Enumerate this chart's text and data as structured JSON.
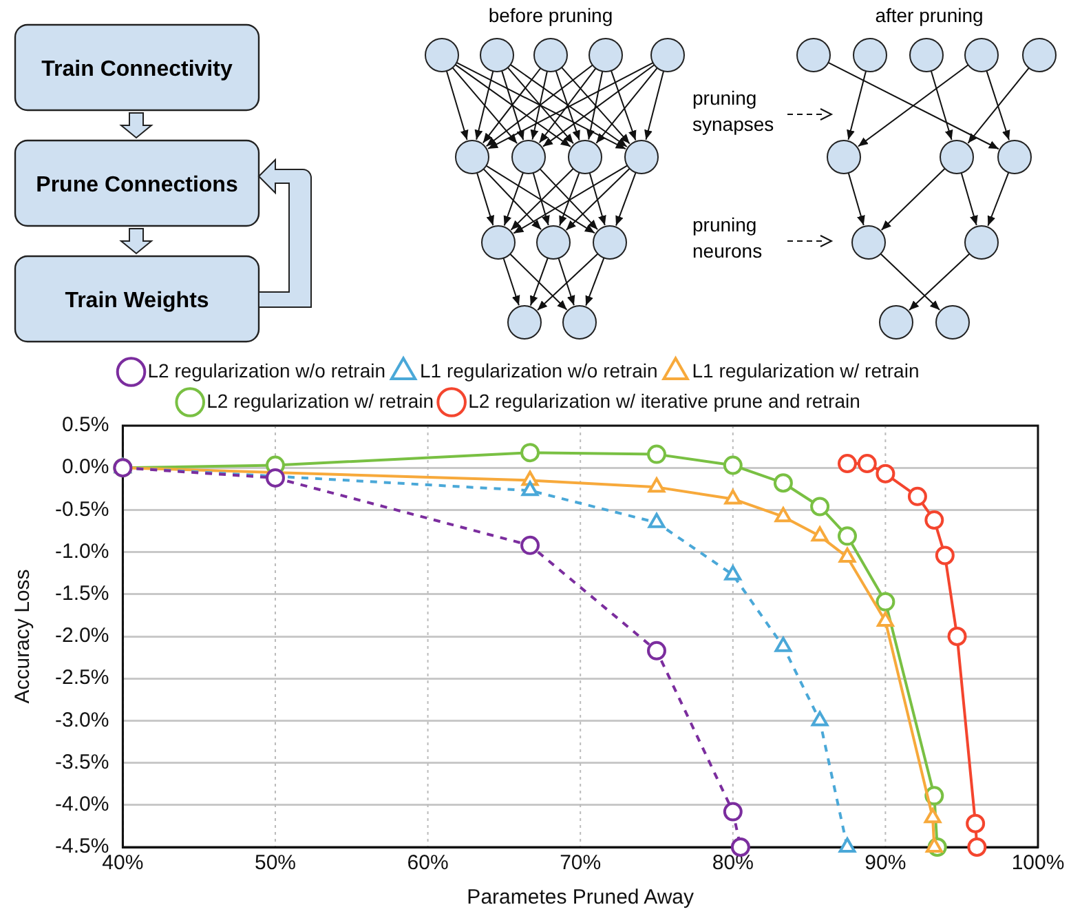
{
  "chart_data": {
    "type": "line",
    "xlabel": "Parametes Pruned Away",
    "ylabel": "Accuracy Loss",
    "annotations": [
      "Train Connectivity",
      "Prune Connections",
      "Train Weights",
      "before pruning",
      "after pruning",
      "pruning synapses",
      "pruning neurons"
    ],
    "xlim": [
      40,
      100
    ],
    "xticks": [
      {
        "value": 40,
        "label": "40%"
      },
      {
        "value": 50,
        "label": "50%"
      },
      {
        "value": 60,
        "label": "60%"
      },
      {
        "value": 70,
        "label": "70%"
      },
      {
        "value": 80,
        "label": "80%"
      },
      {
        "value": 90,
        "label": "90%"
      },
      {
        "value": 100,
        "label": "100%"
      }
    ],
    "ylim": [
      -4.5,
      0.5
    ],
    "yticks": [
      {
        "value": 0.5,
        "label": "0.5%"
      },
      {
        "value": 0,
        "label": "0.0%"
      },
      {
        "value": -0.5,
        "label": "-0.5%"
      },
      {
        "value": -1,
        "label": "-1.0%"
      },
      {
        "value": -1.5,
        "label": "-1.5%"
      },
      {
        "value": -2,
        "label": "-2.0%"
      },
      {
        "value": -2.5,
        "label": "-2.5%"
      },
      {
        "value": -3,
        "label": "-3.0%"
      },
      {
        "value": -3.5,
        "label": "-3.5%"
      },
      {
        "value": -4,
        "label": "-4.0%"
      },
      {
        "value": -4.5,
        "label": "-4.5%"
      }
    ],
    "grid": true,
    "legend": "top",
    "series": [
      {
        "name": "L2 regularization w/o retrain",
        "color": "#7b2d9e",
        "marker": "circle",
        "line_style": "dashed",
        "x": [
          40,
          50,
          66.7,
          75,
          80,
          80.5
        ],
        "values": [
          0,
          -0.12,
          -0.92,
          -2.17,
          -4.08,
          -4.5
        ]
      },
      {
        "name": "L1 regularization w/o retrain",
        "color": "#4aa8d8",
        "marker": "triangle",
        "line_style": "dashed",
        "x": [
          40,
          66.7,
          75,
          80,
          83.3,
          85.7,
          87.5
        ],
        "values": [
          0,
          -0.27,
          -0.65,
          -1.27,
          -2.12,
          -3.0,
          -4.5
        ]
      },
      {
        "name": "L1 regularization w/ retrain",
        "color": "#f7a93b",
        "marker": "triangle",
        "line_style": "solid",
        "x": [
          40,
          66.7,
          75,
          80,
          83.3,
          85.7,
          87.5,
          90,
          93.1,
          93.2
        ],
        "values": [
          0,
          -0.15,
          -0.23,
          -0.37,
          -0.58,
          -0.81,
          -1.06,
          -1.82,
          -4.15,
          -4.5
        ]
      },
      {
        "name": "L2 regularization w/ retrain",
        "color": "#79c043",
        "marker": "circle",
        "line_style": "solid",
        "x": [
          40,
          50,
          66.7,
          75,
          80,
          83.3,
          85.7,
          87.5,
          90,
          93.2,
          93.4
        ],
        "values": [
          0,
          0.03,
          0.18,
          0.16,
          0.03,
          -0.18,
          -0.46,
          -0.81,
          -1.59,
          -3.89,
          -4.5
        ]
      },
      {
        "name": "L2 regularization w/ iterative prune and retrain",
        "color": "#f4452e",
        "marker": "circle",
        "line_style": "solid",
        "x": [
          87.5,
          88.8,
          90,
          92.1,
          93.2,
          93.9,
          94.7,
          95.9,
          96
        ],
        "values": [
          0.05,
          0.05,
          -0.07,
          -0.34,
          -0.62,
          -1.04,
          -2.0,
          -4.22,
          -4.5
        ]
      }
    ]
  }
}
